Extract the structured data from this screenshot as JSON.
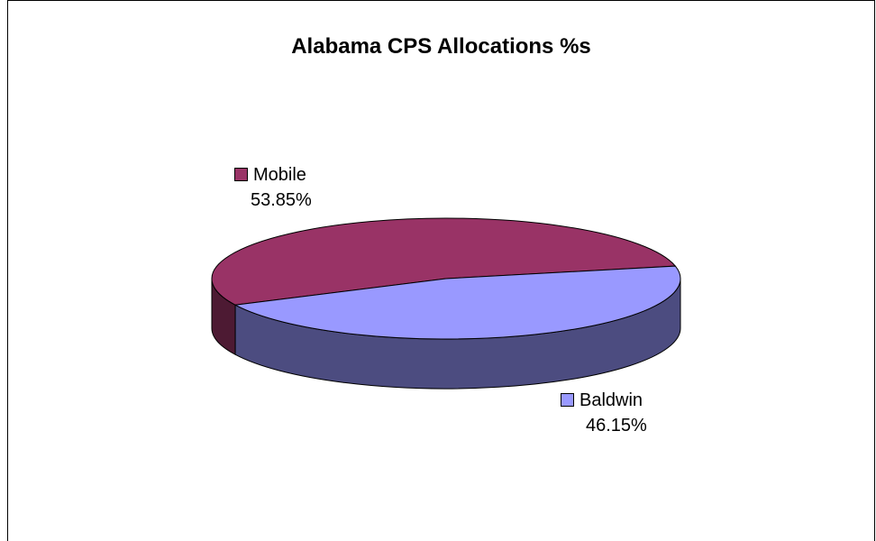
{
  "chart_data": {
    "type": "pie",
    "title": "Alabama CPS Allocations %s",
    "three_d": true,
    "slices": [
      {
        "name": "Mobile",
        "value": 53.85,
        "label": "53.85%",
        "color": "#993366",
        "side_color": "#4d1a33"
      },
      {
        "name": "Baldwin",
        "value": 46.15,
        "label": "46.15%",
        "color": "#9999ff",
        "side_color": "#4c4c80"
      }
    ]
  }
}
